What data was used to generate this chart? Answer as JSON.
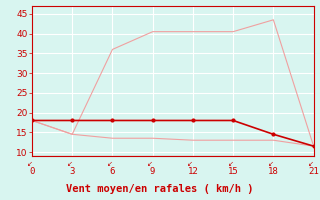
{
  "x": [
    0,
    3,
    6,
    9,
    12,
    15,
    18,
    21
  ],
  "line_rafales": [
    18,
    14.5,
    36,
    40.5,
    40.5,
    40.5,
    43.5,
    11.5
  ],
  "line_moyen": [
    18,
    18,
    18,
    18,
    18,
    18,
    14.5,
    11.5
  ],
  "line_min": [
    18,
    14.5,
    13.5,
    13.5,
    13,
    13,
    13,
    11.5
  ],
  "color_rafales": "#f0a0a0",
  "color_moyen": "#cc0000",
  "color_min": "#f0a0a0",
  "xlabel": "Vent moyen/en rafales ( km/h )",
  "xlabel_color": "#cc0000",
  "background_color": "#d8f5f0",
  "grid_color": "#ffffff",
  "ylim": [
    9,
    47
  ],
  "xlim": [
    0,
    21
  ],
  "yticks": [
    10,
    15,
    20,
    25,
    30,
    35,
    40,
    45
  ],
  "xticks": [
    0,
    3,
    6,
    9,
    12,
    15,
    18,
    21
  ],
  "xtick_labels": [
    "0",
    "3",
    "6",
    "9",
    "12",
    "15",
    "18",
    "21"
  ],
  "tick_color": "#cc0000",
  "tick_fontsize": 6.5,
  "xlabel_fontsize": 7.5
}
